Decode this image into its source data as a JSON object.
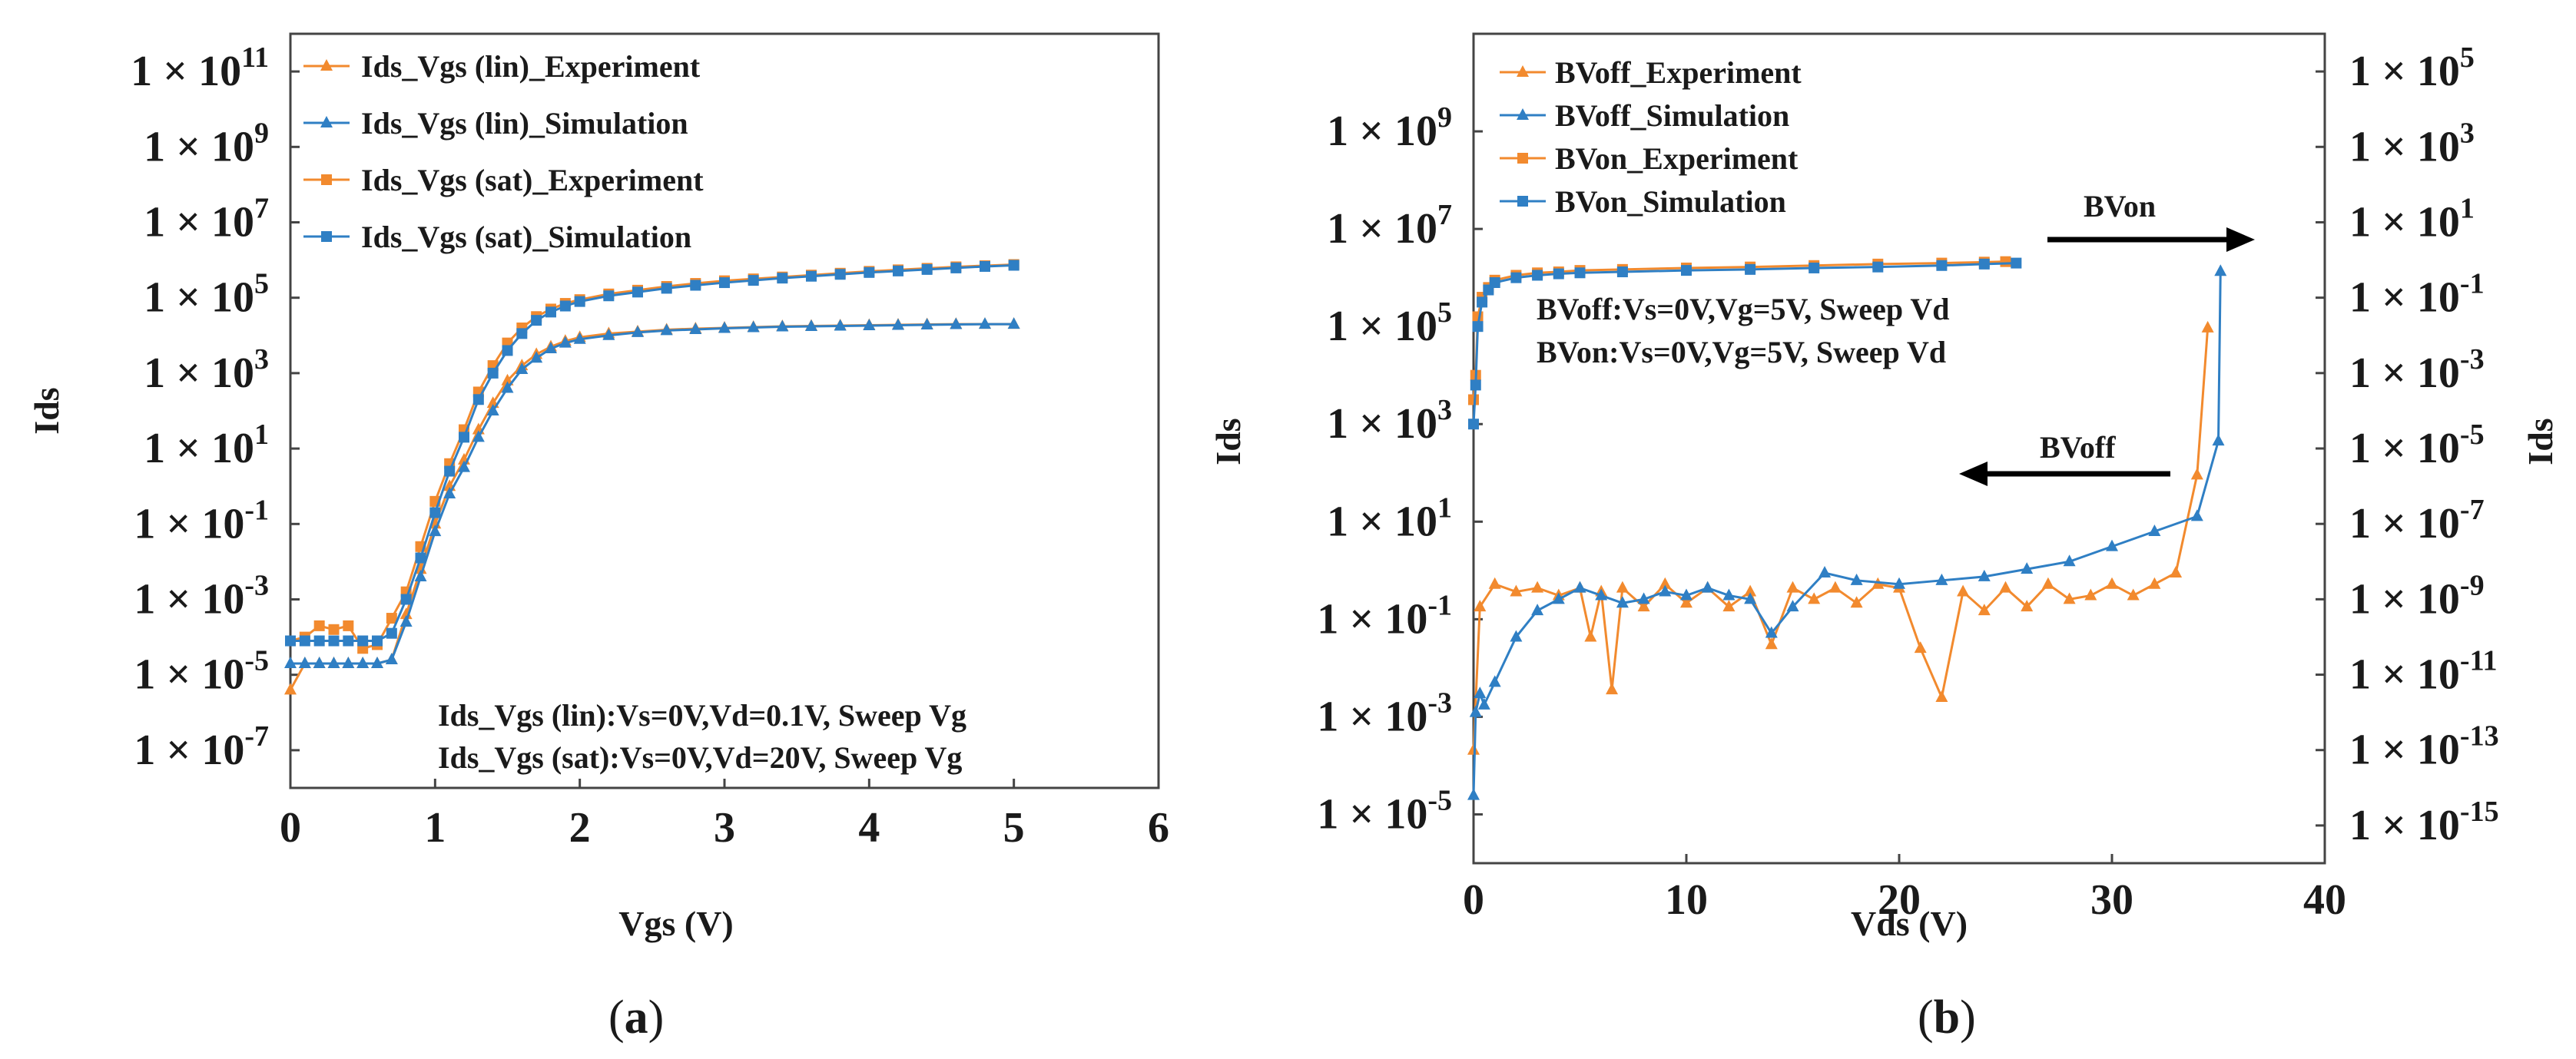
{
  "chart_data": [
    {
      "panel": "a",
      "type": "line",
      "caption": "(a)",
      "xlabel": "Vgs (V)",
      "ylabel": "Ids",
      "yscale": "log",
      "xlim": [
        0,
        6
      ],
      "ylim_exp": [
        -8,
        12
      ],
      "x_ticks": [
        "0",
        "1",
        "2",
        "3",
        "4",
        "5",
        "6"
      ],
      "y_ticks": [
        {
          "base": "1 × 10",
          "exp": "11"
        },
        {
          "base": "1 × 10",
          "exp": "9"
        },
        {
          "base": "1 × 10",
          "exp": "7"
        },
        {
          "base": "1 × 10",
          "exp": "5"
        },
        {
          "base": "1 × 10",
          "exp": "3"
        },
        {
          "base": "1 × 10",
          "exp": "1"
        },
        {
          "base": "1 × 10",
          "exp": "-1"
        },
        {
          "base": "1 × 10",
          "exp": "-3"
        },
        {
          "base": "1 × 10",
          "exp": "-5"
        },
        {
          "base": "1 × 10",
          "exp": "-7"
        }
      ],
      "series": [
        {
          "name": "Ids_Vgs (lin)_Experiment",
          "color": "#f28a2e",
          "marker": "triangle",
          "x": [
            0,
            0.1,
            0.2,
            0.3,
            0.4,
            0.5,
            0.6,
            0.7,
            0.8,
            0.9,
            1.0,
            1.1,
            1.2,
            1.3,
            1.4,
            1.5,
            1.6,
            1.7,
            1.8,
            1.9,
            2.0,
            2.2,
            2.4,
            2.6,
            2.8,
            3.0,
            3.2,
            3.4,
            3.6,
            3.8,
            4.0,
            4.2,
            4.4,
            4.6,
            4.8,
            5.0
          ],
          "log_y": [
            -5.4,
            -4.7,
            -4.7,
            -4.7,
            -4.7,
            -4.7,
            -4.7,
            -4.6,
            -3.4,
            -2.2,
            -1.0,
            0.0,
            0.7,
            1.5,
            2.2,
            2.8,
            3.2,
            3.5,
            3.7,
            3.85,
            3.95,
            4.05,
            4.1,
            4.15,
            4.18,
            4.2,
            4.22,
            4.24,
            4.25,
            4.26,
            4.27,
            4.28,
            4.29,
            4.3,
            4.3,
            4.3
          ]
        },
        {
          "name": "Ids_Vgs (lin)_Simulation",
          "color": "#2f7fc4",
          "marker": "triangle",
          "x": [
            0,
            0.1,
            0.2,
            0.3,
            0.4,
            0.5,
            0.6,
            0.7,
            0.8,
            0.9,
            1.0,
            1.1,
            1.2,
            1.3,
            1.4,
            1.5,
            1.6,
            1.7,
            1.8,
            1.9,
            2.0,
            2.2,
            2.4,
            2.6,
            2.8,
            3.0,
            3.2,
            3.4,
            3.6,
            3.8,
            4.0,
            4.2,
            4.4,
            4.6,
            4.8,
            5.0
          ],
          "log_y": [
            -4.7,
            -4.7,
            -4.7,
            -4.7,
            -4.7,
            -4.7,
            -4.7,
            -4.6,
            -3.6,
            -2.4,
            -1.2,
            -0.2,
            0.5,
            1.3,
            2.0,
            2.6,
            3.1,
            3.4,
            3.65,
            3.8,
            3.9,
            4.0,
            4.08,
            4.13,
            4.16,
            4.19,
            4.21,
            4.23,
            4.24,
            4.25,
            4.26,
            4.27,
            4.28,
            4.29,
            4.3,
            4.3
          ]
        },
        {
          "name": "Ids_Vgs (sat)_Experiment",
          "color": "#f28a2e",
          "marker": "square",
          "x": [
            0,
            0.1,
            0.2,
            0.3,
            0.4,
            0.5,
            0.6,
            0.7,
            0.8,
            0.9,
            1.0,
            1.1,
            1.2,
            1.3,
            1.4,
            1.5,
            1.6,
            1.7,
            1.8,
            1.9,
            2.0,
            2.2,
            2.4,
            2.6,
            2.8,
            3.0,
            3.2,
            3.4,
            3.6,
            3.8,
            4.0,
            4.2,
            4.4,
            4.6,
            4.8,
            5.0
          ],
          "log_y": [
            -4.1,
            -4.0,
            -3.7,
            -3.8,
            -3.7,
            -4.3,
            -4.2,
            -3.5,
            -2.8,
            -1.6,
            -0.4,
            0.6,
            1.5,
            2.5,
            3.2,
            3.8,
            4.2,
            4.5,
            4.7,
            4.85,
            4.95,
            5.1,
            5.2,
            5.3,
            5.38,
            5.45,
            5.5,
            5.55,
            5.6,
            5.65,
            5.7,
            5.74,
            5.78,
            5.82,
            5.85,
            5.88
          ]
        },
        {
          "name": "Ids_Vgs (sat)_Simulation",
          "color": "#2f7fc4",
          "marker": "square",
          "x": [
            0,
            0.1,
            0.2,
            0.3,
            0.4,
            0.5,
            0.6,
            0.7,
            0.8,
            0.9,
            1.0,
            1.1,
            1.2,
            1.3,
            1.4,
            1.5,
            1.6,
            1.7,
            1.8,
            1.9,
            2.0,
            2.2,
            2.4,
            2.6,
            2.8,
            3.0,
            3.2,
            3.4,
            3.6,
            3.8,
            4.0,
            4.2,
            4.4,
            4.6,
            4.8,
            5.0
          ],
          "log_y": [
            -4.1,
            -4.1,
            -4.1,
            -4.1,
            -4.1,
            -4.1,
            -4.1,
            -3.9,
            -3.0,
            -1.9,
            -0.7,
            0.4,
            1.3,
            2.3,
            3.0,
            3.6,
            4.05,
            4.4,
            4.62,
            4.78,
            4.9,
            5.05,
            5.15,
            5.25,
            5.33,
            5.4,
            5.46,
            5.52,
            5.57,
            5.62,
            5.67,
            5.71,
            5.75,
            5.79,
            5.83,
            5.86
          ]
        }
      ],
      "annotations": [
        "Ids_Vgs (lin):Vs=0V,Vd=0.1V, Sweep Vg",
        "Ids_Vgs (sat):Vs=0V,Vd=20V, Sweep Vg"
      ]
    },
    {
      "panel": "b",
      "type": "line",
      "caption": "(b)",
      "xlabel": "Vds (V)",
      "ylabel": "Ids",
      "y2label": "Ids",
      "yscale": "log",
      "xlim": [
        0,
        40
      ],
      "ylim_exp": [
        -6,
        11
      ],
      "y2lim_exp": [
        -16,
        6
      ],
      "x_ticks": [
        "0",
        "10",
        "20",
        "30",
        "40"
      ],
      "y_ticks": [
        {
          "base": "1 × 10",
          "exp": "9"
        },
        {
          "base": "1 × 10",
          "exp": "7"
        },
        {
          "base": "1 × 10",
          "exp": "5"
        },
        {
          "base": "1 × 10",
          "exp": "3"
        },
        {
          "base": "1 × 10",
          "exp": "1"
        },
        {
          "base": "1 × 10",
          "exp": "-1"
        },
        {
          "base": "1 × 10",
          "exp": "-3"
        },
        {
          "base": "1 × 10",
          "exp": "-5"
        }
      ],
      "y2_ticks": [
        {
          "base": "1 × 10",
          "exp": "5"
        },
        {
          "base": "1 × 10",
          "exp": "3"
        },
        {
          "base": "1 × 10",
          "exp": "1"
        },
        {
          "base": "1 × 10",
          "exp": "-1"
        },
        {
          "base": "1 × 10",
          "exp": "-3"
        },
        {
          "base": "1 × 10",
          "exp": "-5"
        },
        {
          "base": "1 × 10",
          "exp": "-7"
        },
        {
          "base": "1 × 10",
          "exp": "-9"
        },
        {
          "base": "1 × 10",
          "exp": "-11"
        },
        {
          "base": "1 × 10",
          "exp": "-13"
        },
        {
          "base": "1 × 10",
          "exp": "-15"
        }
      ],
      "series": [
        {
          "name": "BVoff_Experiment",
          "color": "#f28a2e",
          "marker": "triangle",
          "axis": "right",
          "x": [
            0,
            0.3,
            1,
            2,
            3,
            4,
            5,
            5.5,
            6,
            6.5,
            7,
            8,
            9,
            10,
            11,
            12,
            13,
            14,
            15,
            16,
            17,
            18,
            19,
            20,
            21,
            22,
            23,
            24,
            25,
            26,
            27,
            28,
            29,
            30,
            31,
            32,
            33,
            34,
            34.5
          ],
          "log_y": [
            -13,
            -9.2,
            -8.6,
            -8.8,
            -8.7,
            -8.9,
            -8.7,
            -10.0,
            -8.8,
            -11.4,
            -8.7,
            -9.2,
            -8.6,
            -9.1,
            -8.7,
            -9.2,
            -8.8,
            -10.2,
            -8.7,
            -9.0,
            -8.7,
            -9.1,
            -8.6,
            -8.7,
            -10.3,
            -11.6,
            -8.8,
            -9.3,
            -8.7,
            -9.2,
            -8.6,
            -9.0,
            -8.9,
            -8.6,
            -8.9,
            -8.6,
            -8.3,
            -5.7,
            -1.8
          ]
        },
        {
          "name": "BVoff_Simulation",
          "color": "#2f7fc4",
          "marker": "triangle",
          "axis": "right",
          "x": [
            0,
            0.1,
            0.3,
            0.5,
            1,
            2,
            3,
            4,
            5,
            6,
            7,
            8,
            9,
            10,
            11,
            12,
            13,
            14,
            15,
            16.5,
            18,
            20,
            22,
            24,
            26,
            28,
            30,
            32,
            34,
            35,
            35.1
          ],
          "log_y": [
            -14.2,
            -12.0,
            -11.5,
            -11.8,
            -11.2,
            -10.0,
            -9.3,
            -9.0,
            -8.7,
            -8.9,
            -9.1,
            -9.0,
            -8.8,
            -8.9,
            -8.7,
            -8.9,
            -9.0,
            -9.9,
            -9.2,
            -8.3,
            -8.5,
            -8.6,
            -8.5,
            -8.4,
            -8.2,
            -8.0,
            -7.6,
            -7.2,
            -6.8,
            -4.8,
            -0.3
          ]
        },
        {
          "name": "BVon_Experiment",
          "color": "#f28a2e",
          "marker": "square",
          "axis": "left",
          "x": [
            0,
            0.1,
            0.2,
            0.4,
            0.7,
            1,
            2,
            3,
            4,
            5,
            7,
            10,
            13,
            16,
            19,
            22,
            24,
            25
          ],
          "log_y": [
            3.5,
            4.0,
            5.2,
            5.6,
            5.8,
            5.95,
            6.05,
            6.1,
            6.12,
            6.15,
            6.17,
            6.2,
            6.22,
            6.25,
            6.28,
            6.3,
            6.32,
            6.33
          ]
        },
        {
          "name": "BVon_Simulation",
          "color": "#2f7fc4",
          "marker": "square",
          "axis": "left",
          "x": [
            0,
            0.1,
            0.2,
            0.4,
            0.7,
            1,
            2,
            3,
            4,
            5,
            7,
            10,
            13,
            16,
            19,
            22,
            24,
            25.5
          ],
          "log_y": [
            3.0,
            3.8,
            5.0,
            5.5,
            5.75,
            5.9,
            6.0,
            6.05,
            6.08,
            6.1,
            6.12,
            6.15,
            6.17,
            6.2,
            6.22,
            6.25,
            6.28,
            6.3
          ]
        }
      ],
      "annotations": [
        "BVoff:Vs=0V,Vg=5V, Sweep Vd",
        "BVon:Vs=0V,Vg=5V, Sweep Vd"
      ],
      "arrows": [
        {
          "label": "BVon",
          "direction": "right"
        },
        {
          "label": "BVoff",
          "direction": "left"
        }
      ]
    }
  ]
}
